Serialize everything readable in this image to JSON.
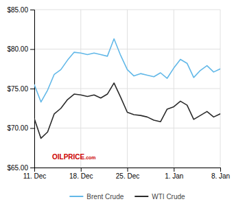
{
  "chart_data": {
    "type": "line",
    "x": [
      0,
      1,
      2,
      3,
      4,
      5,
      6,
      7,
      8,
      9,
      10,
      11,
      12,
      13,
      14,
      15,
      16,
      17,
      18,
      19,
      20,
      21,
      22,
      23,
      24,
      25,
      26,
      27,
      28
    ],
    "series": [
      {
        "name": "Brent Crude",
        "color": "#62b8e8",
        "values": [
          75.5,
          73.3,
          74.8,
          76.8,
          77.4,
          78.6,
          79.6,
          79.5,
          79.3,
          79.5,
          79.3,
          79.1,
          81.3,
          79.2,
          77.4,
          76.6,
          76.9,
          76.7,
          76.5,
          77.0,
          76.3,
          77.6,
          78.7,
          78.2,
          76.4,
          77.3,
          77.9,
          77.1,
          77.5
        ]
      },
      {
        "name": "WTI Crude",
        "color": "#2a2a2a",
        "values": [
          71.2,
          68.7,
          69.5,
          71.8,
          72.5,
          73.6,
          74.3,
          74.2,
          74.0,
          74.2,
          73.8,
          74.3,
          75.7,
          73.9,
          72.0,
          71.7,
          71.6,
          71.4,
          71.0,
          70.8,
          72.4,
          72.7,
          73.4,
          72.9,
          71.1,
          71.6,
          72.1,
          71.4,
          71.8
        ]
      }
    ],
    "xlim": [
      0,
      28
    ],
    "xticks": [
      {
        "value": 0,
        "label": "11. Dec"
      },
      {
        "value": 7,
        "label": "18. Dec"
      },
      {
        "value": 14,
        "label": "25. Dec"
      },
      {
        "value": 21,
        "label": "1. Jan"
      },
      {
        "value": 28,
        "label": "8. Jan"
      }
    ],
    "ylim": [
      65.0,
      85.0
    ],
    "yticks": [
      {
        "value": 65.0,
        "label": "$65.00"
      },
      {
        "value": 70.0,
        "label": "$70.00"
      },
      {
        "value": 75.0,
        "label": "$75.00"
      },
      {
        "value": 80.0,
        "label": "$80.00"
      },
      {
        "value": 85.0,
        "label": "$85.00"
      }
    ],
    "grid": true,
    "legend": "bottom",
    "annotations": [
      "OILPRICE",
      ".com"
    ]
  }
}
